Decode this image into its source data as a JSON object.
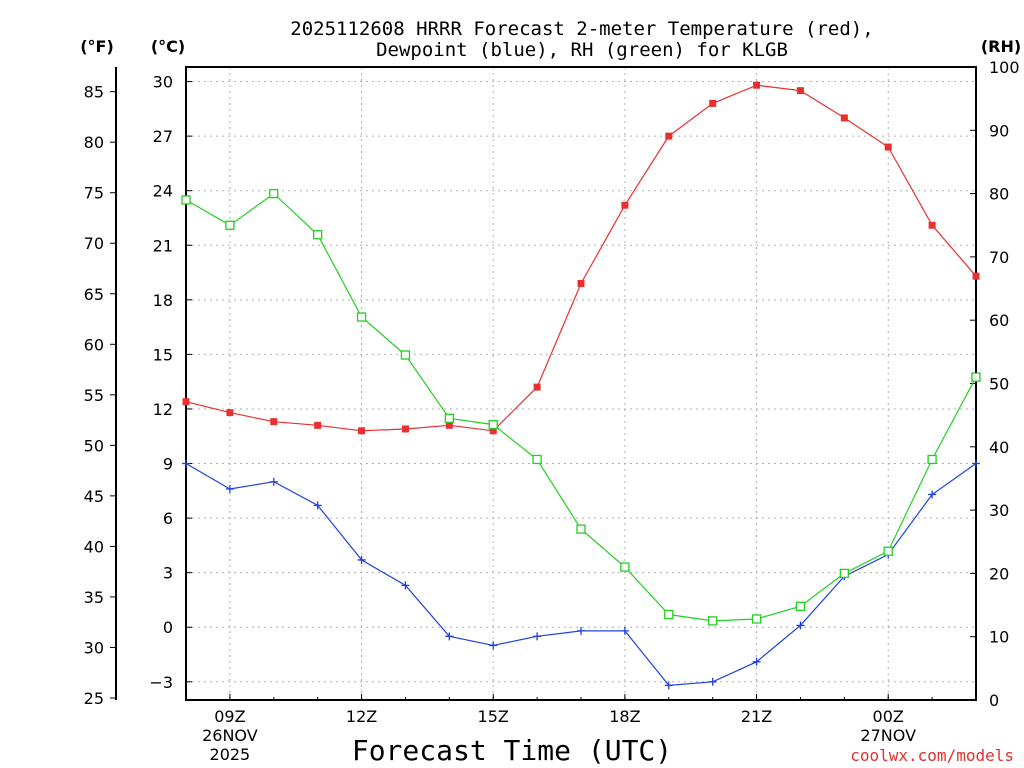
{
  "chart_data": {
    "type": "line",
    "title_line1": "2025112608 HRRR Forecast 2-meter Temperature (red),",
    "title_line2": "Dewpoint (blue), RH (green) for KLGB",
    "xlabel": "Forecast Time (UTC)",
    "credit": "coolwx.com/models",
    "unit_labels": {
      "fahrenheit": "(°F)",
      "celsius": "(°C)",
      "rh": "(RH)"
    },
    "hours": [
      8,
      9,
      10,
      11,
      12,
      13,
      14,
      15,
      16,
      17,
      18,
      19,
      20,
      21,
      22,
      23,
      24,
      25,
      26
    ],
    "x_ticks": [
      {
        "hour": 9,
        "lines": [
          "09Z",
          "26NOV",
          "2025"
        ]
      },
      {
        "hour": 12,
        "lines": [
          "12Z"
        ]
      },
      {
        "hour": 15,
        "lines": [
          "15Z"
        ]
      },
      {
        "hour": 18,
        "lines": [
          "18Z"
        ]
      },
      {
        "hour": 21,
        "lines": [
          "21Z"
        ]
      },
      {
        "hour": 24,
        "lines": [
          "00Z",
          "27NOV"
        ]
      }
    ],
    "xlim": [
      8,
      26
    ],
    "celsius_axis": {
      "ylim": [
        -4,
        30.8
      ],
      "ticks": [
        -3,
        0,
        3,
        6,
        9,
        12,
        15,
        18,
        21,
        24,
        27,
        30
      ]
    },
    "fahrenheit_axis": {
      "ticks": [
        25,
        30,
        35,
        40,
        45,
        50,
        55,
        60,
        65,
        70,
        75,
        80,
        85
      ]
    },
    "rh_axis": {
      "ylim": [
        0,
        100
      ],
      "ticks": [
        0,
        10,
        20,
        30,
        40,
        50,
        60,
        70,
        80,
        90,
        100
      ]
    },
    "series": [
      {
        "name": "Temperature",
        "axis": "celsius",
        "color": "#e83030",
        "marker": "filled-square",
        "values": [
          12.4,
          11.8,
          11.3,
          11.1,
          10.8,
          10.9,
          11.1,
          10.8,
          13.2,
          18.9,
          23.2,
          27.0,
          28.8,
          29.8,
          29.5,
          28.0,
          26.4,
          22.1,
          19.3
        ]
      },
      {
        "name": "Dewpoint",
        "axis": "celsius",
        "color": "#2040e0",
        "marker": "plus",
        "values": [
          9.0,
          7.6,
          8.0,
          6.7,
          3.7,
          2.3,
          -0.5,
          -1.0,
          -0.5,
          -0.2,
          -0.2,
          -3.2,
          -3.0,
          -1.9,
          0.1,
          2.8,
          4.0,
          7.3,
          9.0
        ]
      },
      {
        "name": "RH",
        "axis": "rh",
        "color": "#20d020",
        "marker": "open-square",
        "values": [
          79,
          75,
          80,
          73.5,
          60.5,
          54.5,
          44.5,
          43.5,
          38,
          27,
          21,
          13.5,
          12.5,
          12.8,
          14.8,
          20,
          23.5,
          38,
          51
        ]
      }
    ]
  }
}
